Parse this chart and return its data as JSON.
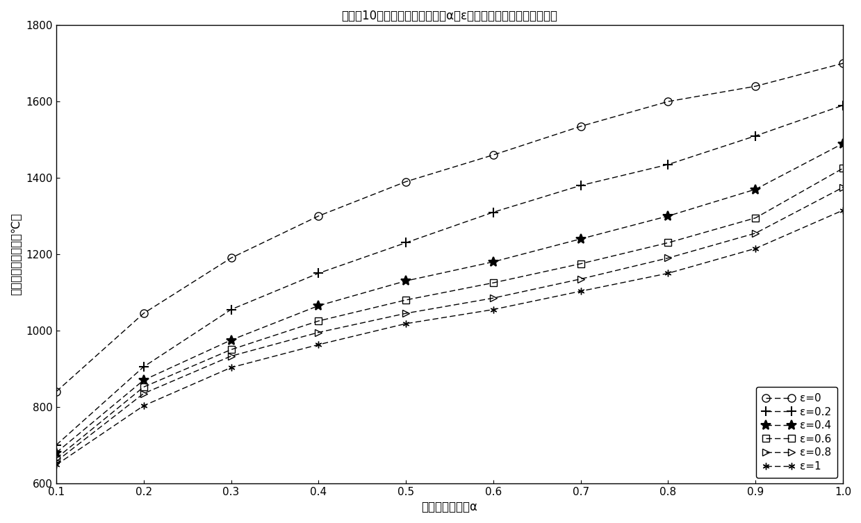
{
  "title": "离日心10倍太阳半径轨道处不同α和ε的热防护层平衡温度变化曲线",
  "xlabel": "太阳辐射吸收率α",
  "ylabel": "热防护层平衡温度（℃）",
  "alpha_values": [
    0.1,
    0.2,
    0.3,
    0.4,
    0.5,
    0.6,
    0.7,
    0.8,
    0.9,
    1.0
  ],
  "epsilon_values": [
    0.0,
    0.2,
    0.4,
    0.6,
    0.8,
    1.0
  ],
  "xlim": [
    0.1,
    1.0
  ],
  "ylim": [
    600,
    1800
  ],
  "yticks": [
    600,
    800,
    1000,
    1200,
    1400,
    1600,
    1800
  ],
  "xticks": [
    0.1,
    0.2,
    0.3,
    0.4,
    0.5,
    0.6,
    0.7,
    0.8,
    0.9,
    1.0
  ],
  "legend_labels": [
    "ε=0",
    "ε=0.2",
    "ε=0.4",
    "ε=0.6",
    "ε=0.8",
    "ε=1"
  ],
  "temp_data": {
    "0.0": [
      840,
      1045,
      1190,
      1300,
      1390,
      1460,
      1535,
      1600,
      1640,
      1700
    ],
    "0.2": [
      700,
      905,
      1055,
      1150,
      1230,
      1310,
      1380,
      1435,
      1510,
      1590
    ],
    "0.4": [
      680,
      870,
      975,
      1065,
      1130,
      1180,
      1240,
      1300,
      1370,
      1490
    ],
    "0.6": [
      665,
      852,
      950,
      1025,
      1080,
      1125,
      1175,
      1230,
      1295,
      1425
    ],
    "0.8": [
      657,
      835,
      933,
      995,
      1045,
      1085,
      1135,
      1190,
      1255,
      1375
    ],
    "1.0": [
      648,
      803,
      903,
      963,
      1018,
      1055,
      1103,
      1150,
      1215,
      1315
    ]
  },
  "S_eff": 356000.0,
  "sigma": 5.67e-08,
  "line_color": "#000000",
  "bg_color": "#ffffff",
  "grid_color": "#c8c8c8",
  "linewidth": 1.0,
  "title_fontsize": 12,
  "label_fontsize": 12,
  "tick_fontsize": 11,
  "legend_fontsize": 11
}
